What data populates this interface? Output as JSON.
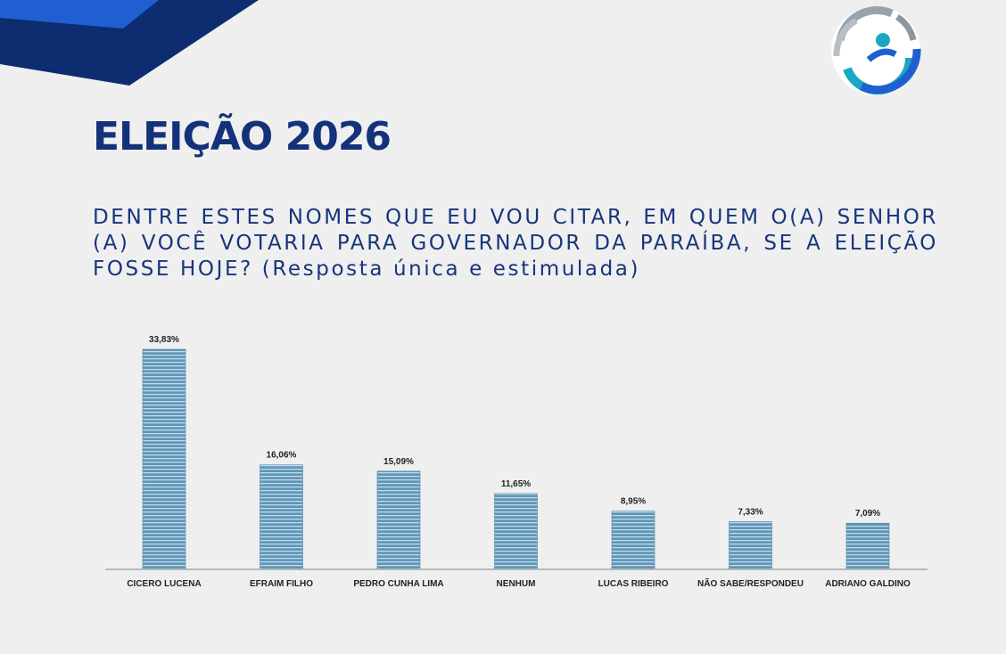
{
  "title": "ELEIÇÃO 2026",
  "question": "DENTRE ESTES NOMES QUE EU VOU CITAR, EM QUEM O(A) SENHOR (A) VOCÊ VOTARIA PARA GOVERNADOR DA PARAÍBA, SE A ELEIÇÃO FOSSE HOJE? (Resposta única e estimulada)",
  "colors": {
    "brand_dark": "#13327a",
    "brand_blue": "#1f5fd1",
    "bar": "#5e96b8",
    "bar_stripe": "#c3dae8"
  },
  "logo_icon": "globe-logo-icon",
  "chart_data": {
    "type": "bar",
    "categories": [
      "CICERO LUCENA",
      "EFRAIM FILHO",
      "PEDRO CUNHA LIMA",
      "NENHUM",
      "LUCAS RIBEIRO",
      "NÃO SABE/RESPONDEU",
      "ADRIANO GALDINO"
    ],
    "values": [
      33.83,
      16.06,
      15.09,
      11.65,
      8.95,
      7.33,
      7.09
    ],
    "data_labels": [
      "33,83%",
      "16,06%",
      "15,09%",
      "11,65%",
      "8,95%",
      "7,33%",
      "7,09%"
    ],
    "title": "",
    "xlabel": "",
    "ylabel": "",
    "ylim": [
      0,
      35
    ],
    "grid": false
  }
}
